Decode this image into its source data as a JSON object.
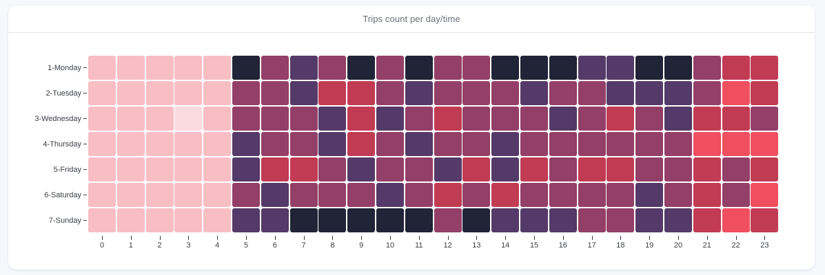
{
  "card": {
    "title": "Trips count per day/time"
  },
  "chart_data": {
    "type": "heatmap",
    "title": "Trips count per day/time",
    "xlabel": "",
    "ylabel": "",
    "x": [
      "0",
      "1",
      "2",
      "3",
      "4",
      "5",
      "6",
      "7",
      "8",
      "9",
      "10",
      "11",
      "12",
      "13",
      "14",
      "15",
      "16",
      "17",
      "18",
      "19",
      "20",
      "21",
      "22",
      "23"
    ],
    "y": [
      "1-Monday",
      "2-Tuesday",
      "3-Wednesday",
      "4-Thursday",
      "5-Friday",
      "6-Saturday",
      "7-Sunday"
    ],
    "value_scale_note": "Ordinal intensity levels read from cell color (0 = lowest/lightest, 6 = highest/darkest); no color legend is shown",
    "levels": [
      {
        "level": 0,
        "color": "#fcdbde"
      },
      {
        "level": 1,
        "color": "#f8bec4"
      },
      {
        "level": 2,
        "color": "#ef4f5f"
      },
      {
        "level": 3,
        "color": "#c13b53"
      },
      {
        "level": 4,
        "color": "#943f67"
      },
      {
        "level": 5,
        "color": "#543a68"
      },
      {
        "level": 6,
        "color": "#212437"
      }
    ],
    "values": [
      [
        1,
        1,
        1,
        1,
        1,
        6,
        4,
        5,
        4,
        6,
        4,
        6,
        4,
        4,
        6,
        6,
        6,
        5,
        5,
        6,
        6,
        4,
        3,
        3
      ],
      [
        1,
        1,
        1,
        1,
        1,
        4,
        4,
        5,
        3,
        3,
        4,
        5,
        4,
        4,
        4,
        5,
        4,
        4,
        5,
        5,
        5,
        4,
        2,
        3
      ],
      [
        1,
        1,
        1,
        0,
        1,
        4,
        4,
        4,
        5,
        3,
        5,
        4,
        3,
        4,
        4,
        4,
        5,
        4,
        3,
        4,
        5,
        3,
        3,
        4
      ],
      [
        1,
        1,
        1,
        1,
        1,
        5,
        4,
        4,
        5,
        3,
        4,
        5,
        4,
        4,
        5,
        4,
        4,
        4,
        4,
        4,
        4,
        2,
        2,
        2
      ],
      [
        1,
        1,
        1,
        1,
        1,
        5,
        3,
        3,
        4,
        5,
        4,
        4,
        5,
        3,
        5,
        3,
        4,
        3,
        3,
        4,
        4,
        3,
        4,
        3
      ],
      [
        1,
        1,
        1,
        1,
        1,
        4,
        5,
        4,
        4,
        4,
        5,
        4,
        3,
        4,
        3,
        4,
        4,
        4,
        4,
        5,
        4,
        3,
        4,
        2
      ],
      [
        1,
        1,
        1,
        1,
        1,
        5,
        5,
        6,
        6,
        6,
        6,
        6,
        4,
        6,
        5,
        5,
        5,
        4,
        4,
        5,
        5,
        3,
        2,
        3
      ]
    ],
    "grid": false,
    "legend": "none"
  }
}
